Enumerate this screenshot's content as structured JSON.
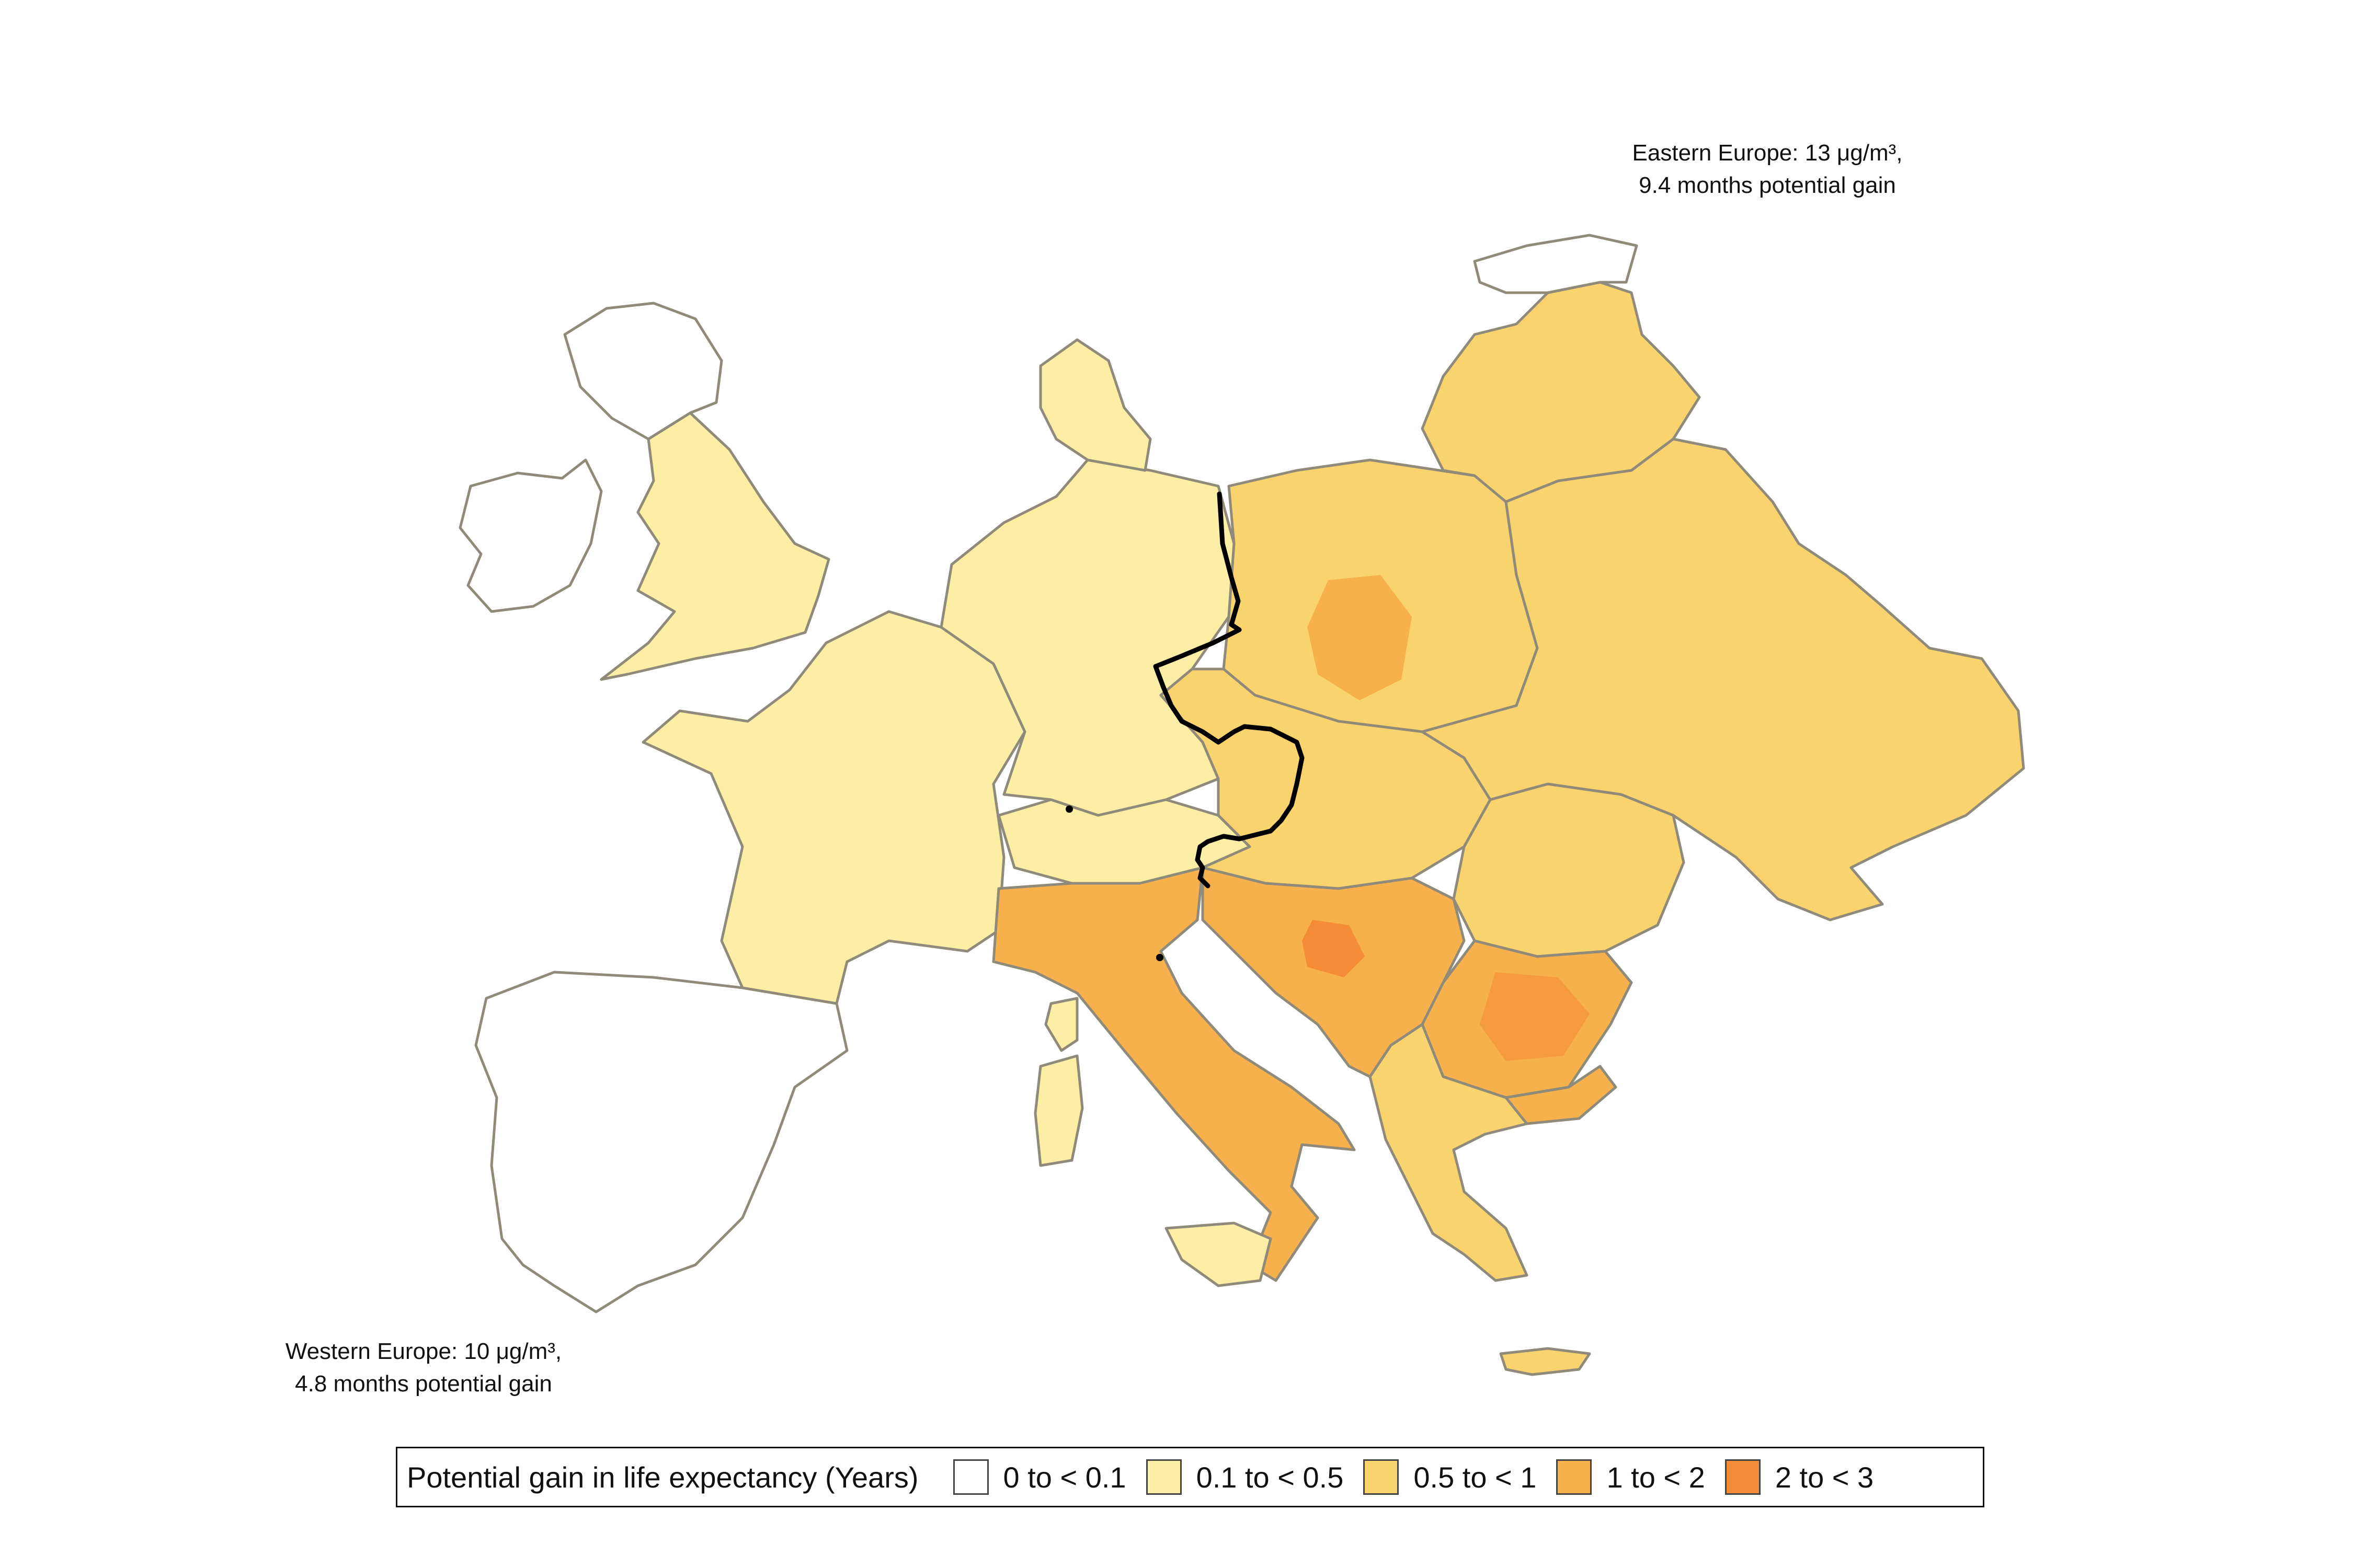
{
  "annotations": {
    "east_line1": "Eastern Europe: 13 μg/m³,",
    "east_line2": "9.4 months potential gain",
    "west_line1": "Western Europe: 10 μg/m³,",
    "west_line2": "4.8 months potential gain"
  },
  "legend": {
    "title": "Potential gain in life expectancy (Years)",
    "items": [
      {
        "label": "0 to < 0.1",
        "color": "#ffffff"
      },
      {
        "label": "0.1 to < 0.5",
        "color": "#fdeea6"
      },
      {
        "label": "0.5 to < 1",
        "color": "#f9d46e"
      },
      {
        "label": "1 to < 2",
        "color": "#f6b14d"
      },
      {
        "label": "2 to < 3",
        "color": "#f48c3a"
      }
    ]
  },
  "colors": {
    "border": "#8f8a7a",
    "divider_line": "#000000"
  }
}
